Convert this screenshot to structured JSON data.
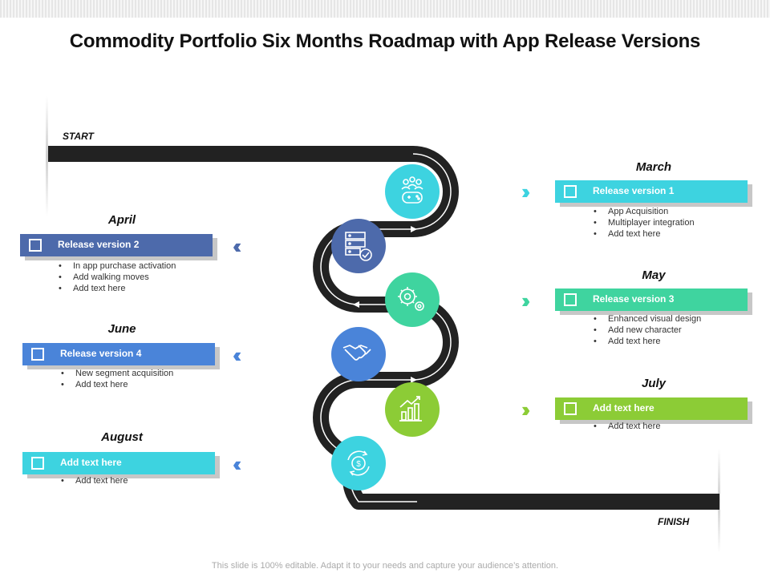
{
  "title": "Commodity Portfolio Six Months Roadmap with App Release Versions",
  "start_label": "START",
  "finish_label": "FINISH",
  "colors": {
    "road": "#222222",
    "teal": "#3dd3e0",
    "navy": "#4d6aab",
    "mint": "#3fd49f",
    "blue": "#4a84d9",
    "green": "#8ccc36",
    "cyan": "#3dd3e0"
  },
  "milestones": [
    {
      "month": "March",
      "banner": "Release version 1",
      "color": "#3dd3e0",
      "icon": "people-gamepad-icon",
      "bullets": [
        "App Acquisition",
        "Multiplayer integration",
        "Add text here"
      ]
    },
    {
      "month": "April",
      "banner": "Release version 2",
      "color": "#4d6aab",
      "icon": "server-check-icon",
      "bullets": [
        "In app purchase activation",
        "Add walking moves",
        "Add text here"
      ]
    },
    {
      "month": "May",
      "banner": "Release version 3",
      "color": "#3fd49f",
      "icon": "gears-icon",
      "bullets": [
        "Enhanced visual design",
        "Add new character",
        "Add text here"
      ]
    },
    {
      "month": "June",
      "banner": "Release version 4",
      "color": "#4a84d9",
      "icon": "handshake-icon",
      "bullets": [
        "New segment acquisition",
        "Add text here"
      ]
    },
    {
      "month": "July",
      "banner": "Add text here",
      "color": "#8ccc36",
      "icon": "growth-chart-icon",
      "bullets": [
        "Add text here"
      ]
    },
    {
      "month": "August",
      "banner": "Add text here",
      "color": "#3dd3e0",
      "icon": "dollar-cycle-icon",
      "bullets": [
        "Add text here"
      ]
    }
  ],
  "footer": "This slide is 100% editable. Adapt it to your needs and capture your audience’s attention."
}
